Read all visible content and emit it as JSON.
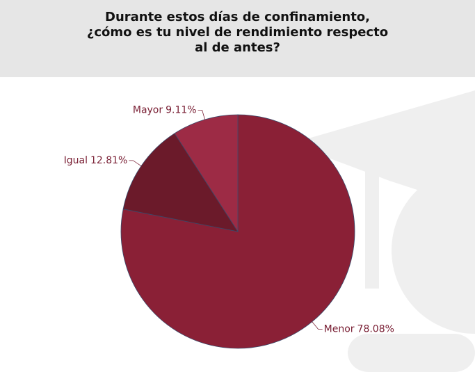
{
  "chart_data": {
    "type": "pie",
    "title": "Durante estos días de confinamiento, ¿cómo es tu nivel de rendimiento respecto al de antes?",
    "categories": [
      "Menor",
      "Igual",
      "Mayor"
    ],
    "values": [
      78.08,
      12.81,
      9.11
    ],
    "value_labels": [
      "78.08%",
      "12.81%",
      "9.11%"
    ],
    "colors": [
      "#8a2036",
      "#6b1a2a",
      "#9d2b45"
    ]
  }
}
